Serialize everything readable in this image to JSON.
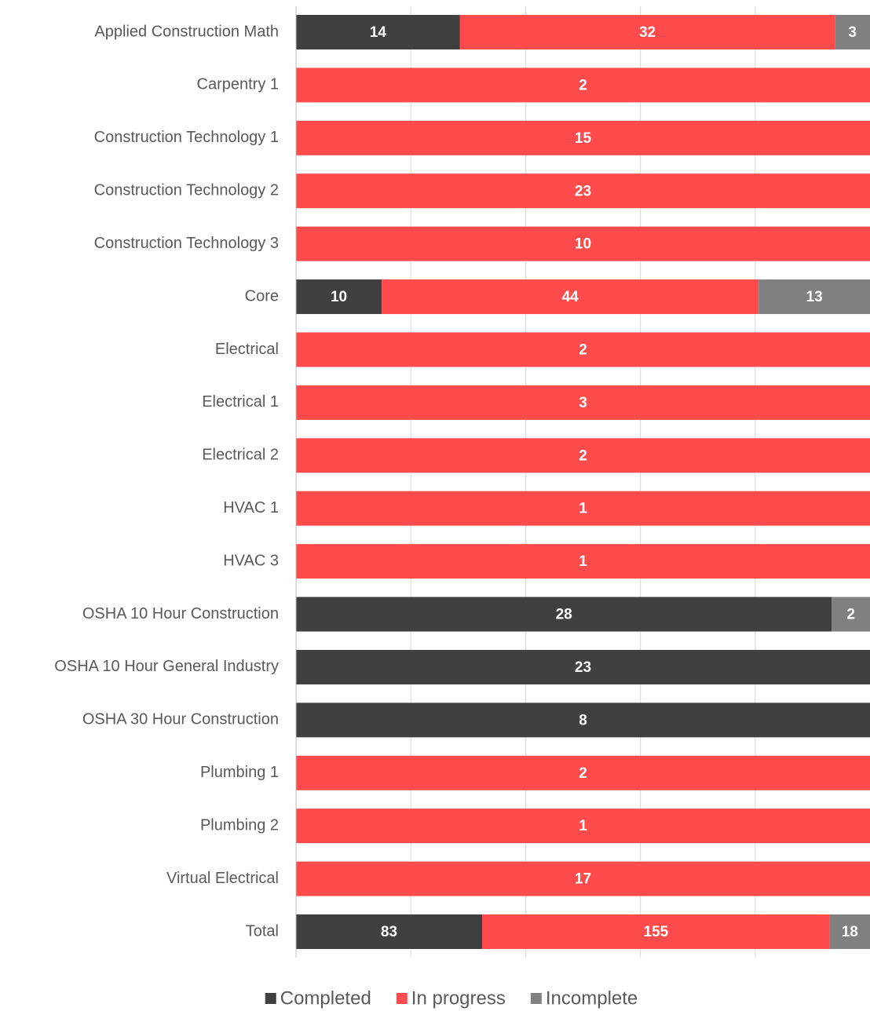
{
  "chart_data": {
    "type": "bar",
    "orientation": "horizontal",
    "stacking": "percent",
    "categories": [
      "Applied Construction Math",
      "Carpentry 1",
      "Construction Technology 1",
      "Construction Technology 2",
      "Construction Technology 3",
      "Core",
      "Electrical",
      "Electrical 1",
      "Electrical 2",
      "HVAC 1",
      "HVAC 3",
      "OSHA 10 Hour Construction",
      "OSHA 10 Hour General Industry",
      "OSHA 30 Hour Construction",
      "Plumbing 1",
      "Plumbing 2",
      "Virtual Electrical",
      "Total"
    ],
    "series": [
      {
        "name": "Completed",
        "color": "#404040",
        "values": [
          14,
          null,
          null,
          null,
          null,
          10,
          null,
          null,
          null,
          null,
          null,
          28,
          23,
          8,
          null,
          null,
          null,
          83
        ]
      },
      {
        "name": "In progress",
        "color": "#ff4b4b",
        "values": [
          32,
          2,
          15,
          23,
          10,
          44,
          2,
          3,
          2,
          1,
          1,
          null,
          null,
          null,
          2,
          1,
          17,
          155
        ]
      },
      {
        "name": "Incomplete",
        "color": "#808080",
        "values": [
          3,
          null,
          null,
          null,
          null,
          13,
          null,
          null,
          null,
          null,
          null,
          2,
          null,
          null,
          null,
          null,
          null,
          18
        ]
      }
    ],
    "grid": true,
    "legend": "bottom"
  }
}
